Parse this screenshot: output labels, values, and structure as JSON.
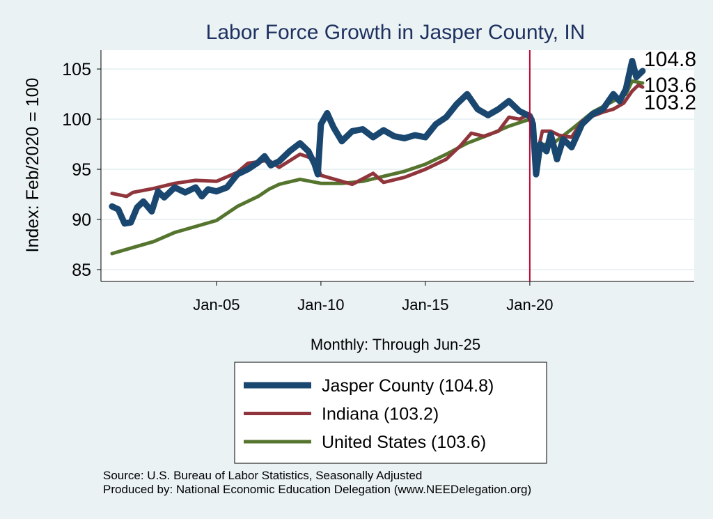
{
  "chart_data": {
    "type": "line",
    "title": "Labor Force Growth in Jasper  County, IN",
    "xlabel": "Monthly: Through Jun-25",
    "ylabel": "Index: Feb/2020 = 100",
    "xlim": [
      1999.47,
      2027.87
    ],
    "ylim": [
      83.82,
      106.88
    ],
    "yticks": [
      85,
      90,
      95,
      100,
      105
    ],
    "xticks": [
      {
        "x": 2005,
        "label": "Jan-05"
      },
      {
        "x": 2010,
        "label": "Jan-10"
      },
      {
        "x": 2015,
        "label": "Jan-15"
      },
      {
        "x": 2020,
        "label": "Jan-20"
      }
    ],
    "vline": 2020,
    "grid": true,
    "legend_position": "bottom",
    "end_labels": [
      "104.8",
      "103.6",
      "103.2"
    ],
    "series": [
      {
        "name": "Jasper  County (104.8)",
        "color": "#1a476f",
        "width": 9,
        "points": [
          [
            2000,
            91.3
          ],
          [
            2000.3,
            91
          ],
          [
            2000.6,
            89.6
          ],
          [
            2000.9,
            89.7
          ],
          [
            2001.2,
            91.2
          ],
          [
            2001.5,
            91.8
          ],
          [
            2001.9,
            90.8
          ],
          [
            2002.2,
            92.8
          ],
          [
            2002.5,
            92.2
          ],
          [
            2003,
            93.2
          ],
          [
            2003.5,
            92.7
          ],
          [
            2004,
            93.2
          ],
          [
            2004.3,
            92.3
          ],
          [
            2004.6,
            93
          ],
          [
            2005,
            92.8
          ],
          [
            2005.5,
            93.2
          ],
          [
            2006,
            94.5
          ],
          [
            2006.5,
            95
          ],
          [
            2007,
            95.7
          ],
          [
            2007.3,
            96.3
          ],
          [
            2007.6,
            95.4
          ],
          [
            2008,
            95.8
          ],
          [
            2008.5,
            96.8
          ],
          [
            2009,
            97.6
          ],
          [
            2009.4,
            96.8
          ],
          [
            2009.7,
            95.5
          ],
          [
            2009.85,
            94.5
          ],
          [
            2010,
            99.5
          ],
          [
            2010.3,
            100.6
          ],
          [
            2010.6,
            99.2
          ],
          [
            2011,
            97.8
          ],
          [
            2011.5,
            98.8
          ],
          [
            2012,
            99
          ],
          [
            2012.5,
            98.2
          ],
          [
            2013,
            98.9
          ],
          [
            2013.5,
            98.3
          ],
          [
            2014,
            98.1
          ],
          [
            2014.5,
            98.4
          ],
          [
            2015,
            98.2
          ],
          [
            2015.5,
            99.5
          ],
          [
            2016,
            100.2
          ],
          [
            2016.5,
            101.5
          ],
          [
            2017,
            102.5
          ],
          [
            2017.5,
            101
          ],
          [
            2018,
            100.4
          ],
          [
            2018.5,
            101
          ],
          [
            2019,
            101.8
          ],
          [
            2019.5,
            100.8
          ],
          [
            2020,
            100.3
          ],
          [
            2020.15,
            99.5
          ],
          [
            2020.3,
            94.5
          ],
          [
            2020.5,
            97.5
          ],
          [
            2020.8,
            96.8
          ],
          [
            2021,
            98.5
          ],
          [
            2021.3,
            96
          ],
          [
            2021.6,
            98
          ],
          [
            2022,
            97.2
          ],
          [
            2022.5,
            99.5
          ],
          [
            2023,
            100.5
          ],
          [
            2023.5,
            101
          ],
          [
            2024,
            102.5
          ],
          [
            2024.3,
            101.8
          ],
          [
            2024.6,
            103
          ],
          [
            2024.9,
            105.8
          ],
          [
            2025.1,
            104.2
          ],
          [
            2025.4,
            104.8
          ]
        ]
      },
      {
        "name": "Indiana (103.2)",
        "color": "#90353b",
        "width": 5,
        "points": [
          [
            2000,
            92.6
          ],
          [
            2000.7,
            92.3
          ],
          [
            2001,
            92.7
          ],
          [
            2002,
            93.1
          ],
          [
            2003,
            93.6
          ],
          [
            2004,
            93.9
          ],
          [
            2005,
            93.8
          ],
          [
            2006,
            94.7
          ],
          [
            2006.5,
            95.6
          ],
          [
            2007.5,
            95.9
          ],
          [
            2008,
            95.2
          ],
          [
            2009,
            96.5
          ],
          [
            2009.7,
            96
          ],
          [
            2010,
            94.4
          ],
          [
            2011,
            93.8
          ],
          [
            2011.5,
            93.5
          ],
          [
            2012.5,
            94.6
          ],
          [
            2013,
            93.7
          ],
          [
            2014,
            94.2
          ],
          [
            2015,
            95
          ],
          [
            2016,
            96
          ],
          [
            2016.7,
            97.4
          ],
          [
            2017.2,
            98.6
          ],
          [
            2017.8,
            98.3
          ],
          [
            2018.5,
            98.8
          ],
          [
            2019,
            100.2
          ],
          [
            2019.5,
            100
          ],
          [
            2020,
            100.5
          ],
          [
            2020.15,
            100
          ],
          [
            2020.3,
            96
          ],
          [
            2020.6,
            98.8
          ],
          [
            2021,
            98.8
          ],
          [
            2021.4,
            98.4
          ],
          [
            2022,
            98.2
          ],
          [
            2022.5,
            99.8
          ],
          [
            2023,
            100.3
          ],
          [
            2023.5,
            100.7
          ],
          [
            2024,
            101
          ],
          [
            2024.5,
            101.6
          ],
          [
            2024.9,
            102.8
          ],
          [
            2025.2,
            103.4
          ],
          [
            2025.4,
            103.2
          ]
        ]
      },
      {
        "name": "United States (103.6)",
        "color": "#55752f",
        "width": 5,
        "points": [
          [
            2000,
            86.6
          ],
          [
            2001,
            87.2
          ],
          [
            2002,
            87.8
          ],
          [
            2003,
            88.7
          ],
          [
            2004,
            89.3
          ],
          [
            2005,
            89.9
          ],
          [
            2006,
            91.3
          ],
          [
            2007,
            92.3
          ],
          [
            2007.5,
            93
          ],
          [
            2008,
            93.5
          ],
          [
            2009,
            94
          ],
          [
            2010,
            93.6
          ],
          [
            2011,
            93.6
          ],
          [
            2012,
            93.8
          ],
          [
            2013,
            94.3
          ],
          [
            2014,
            94.8
          ],
          [
            2015,
            95.5
          ],
          [
            2016,
            96.5
          ],
          [
            2017,
            97.6
          ],
          [
            2018,
            98.4
          ],
          [
            2019,
            99.3
          ],
          [
            2020,
            100
          ],
          [
            2020.15,
            99.5
          ],
          [
            2020.3,
            95
          ],
          [
            2020.6,
            97.5
          ],
          [
            2021,
            97.4
          ],
          [
            2022,
            99
          ],
          [
            2023,
            100.7
          ],
          [
            2024,
            101.8
          ],
          [
            2024.6,
            102.5
          ],
          [
            2024.9,
            103.8
          ],
          [
            2025.4,
            103.6
          ]
        ]
      }
    ]
  },
  "notes": {
    "source": "Source: U.S. Bureau of Labor Statistics, Seasonally Adjusted",
    "produced": "Produced by: National Economic Education Delegation (www.NEEDelegation.org)"
  }
}
